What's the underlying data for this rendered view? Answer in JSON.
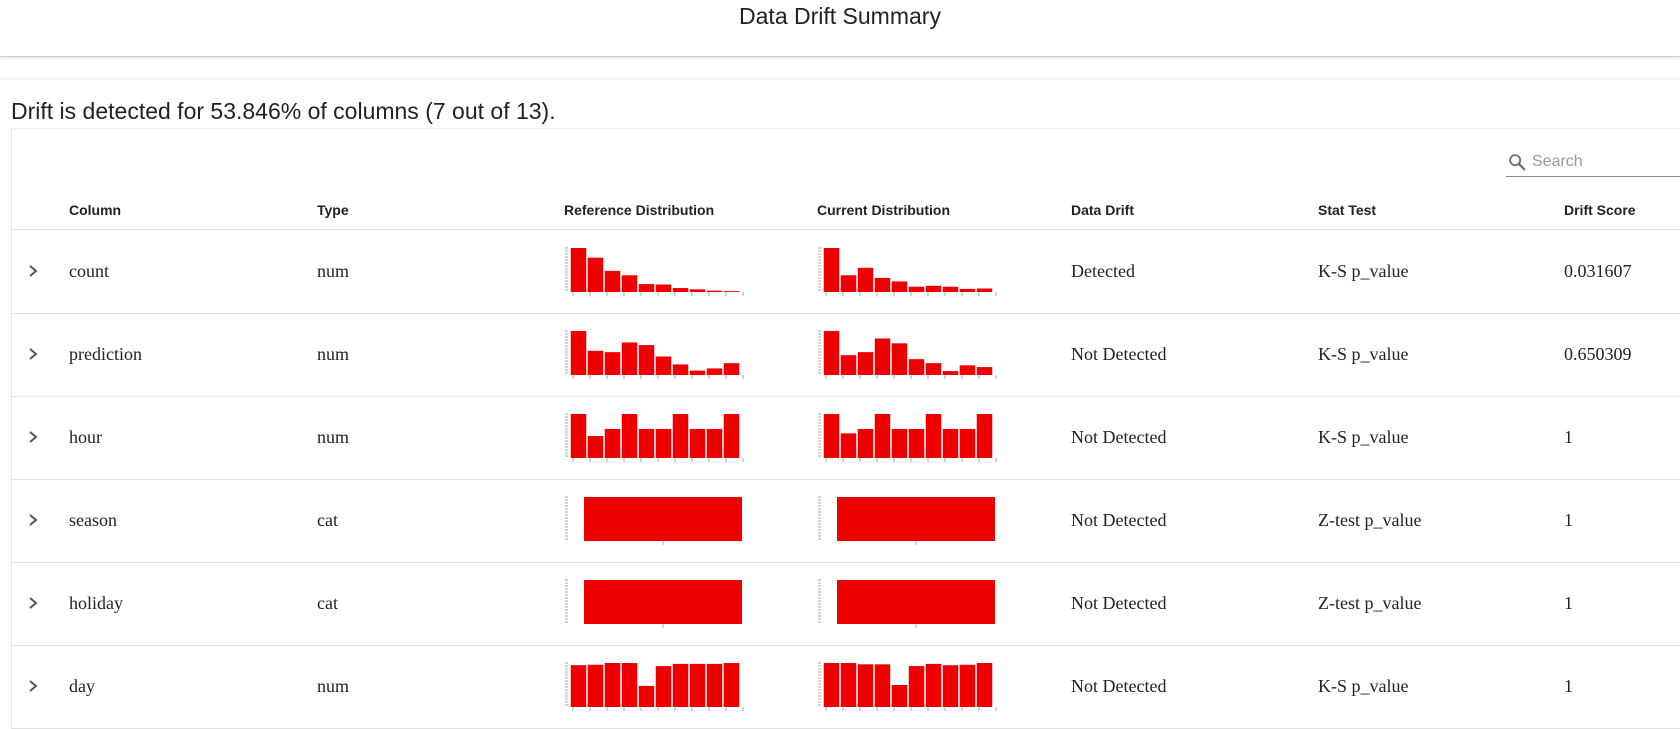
{
  "header": {
    "title": "Data Drift Summary"
  },
  "summary": {
    "text": "Drift is detected for 53.846% of columns (7 out of 13)."
  },
  "search": {
    "placeholder": "Search",
    "icon": "search-icon"
  },
  "columns": [
    "Column",
    "Type",
    "Reference Distribution",
    "Current Distribution",
    "Data Drift",
    "Stat Test",
    "Drift Score"
  ],
  "colors": {
    "bar": "#ee0000",
    "axis": "#aaaaaa",
    "text": "#222222"
  },
  "rows": [
    {
      "column": "count",
      "type": "num",
      "drift": "Detected",
      "stat_test": "K-S p_value",
      "score": "0.031607",
      "reference": [
        1.0,
        0.78,
        0.48,
        0.38,
        0.18,
        0.17,
        0.09,
        0.06,
        0.03,
        0.02
      ],
      "current": [
        1.0,
        0.38,
        0.55,
        0.32,
        0.24,
        0.12,
        0.14,
        0.12,
        0.07,
        0.08
      ]
    },
    {
      "column": "prediction",
      "type": "num",
      "drift": "Not Detected",
      "stat_test": "K-S p_value",
      "score": "0.650309",
      "reference": [
        1.0,
        0.55,
        0.52,
        0.74,
        0.68,
        0.42,
        0.24,
        0.1,
        0.15,
        0.27
      ],
      "current": [
        1.0,
        0.45,
        0.52,
        0.83,
        0.72,
        0.36,
        0.27,
        0.09,
        0.22,
        0.18
      ]
    },
    {
      "column": "hour",
      "type": "num",
      "drift": "Not Detected",
      "stat_test": "K-S p_value",
      "score": "1",
      "reference": [
        1.0,
        0.5,
        0.66,
        1.0,
        0.66,
        0.66,
        1.0,
        0.66,
        0.66,
        1.0
      ],
      "current": [
        1.0,
        0.56,
        0.66,
        1.0,
        0.66,
        0.66,
        1.0,
        0.66,
        0.66,
        1.0
      ]
    },
    {
      "column": "season",
      "type": "cat",
      "drift": "Not Detected",
      "stat_test": "Z-test p_value",
      "score": "1",
      "reference": [
        1.0
      ],
      "current": [
        1.0
      ]
    },
    {
      "column": "holiday",
      "type": "cat",
      "drift": "Not Detected",
      "stat_test": "Z-test p_value",
      "score": "1",
      "reference": [
        1.0
      ],
      "current": [
        1.0
      ]
    },
    {
      "column": "day",
      "type": "num",
      "drift": "Not Detected",
      "stat_test": "K-S p_value",
      "score": "1",
      "reference": [
        0.95,
        0.96,
        1.0,
        1.0,
        0.48,
        0.93,
        0.98,
        0.98,
        0.98,
        1.0
      ],
      "current": [
        1.0,
        1.0,
        0.97,
        0.97,
        0.5,
        0.93,
        0.98,
        0.95,
        0.96,
        1.0
      ]
    }
  ]
}
